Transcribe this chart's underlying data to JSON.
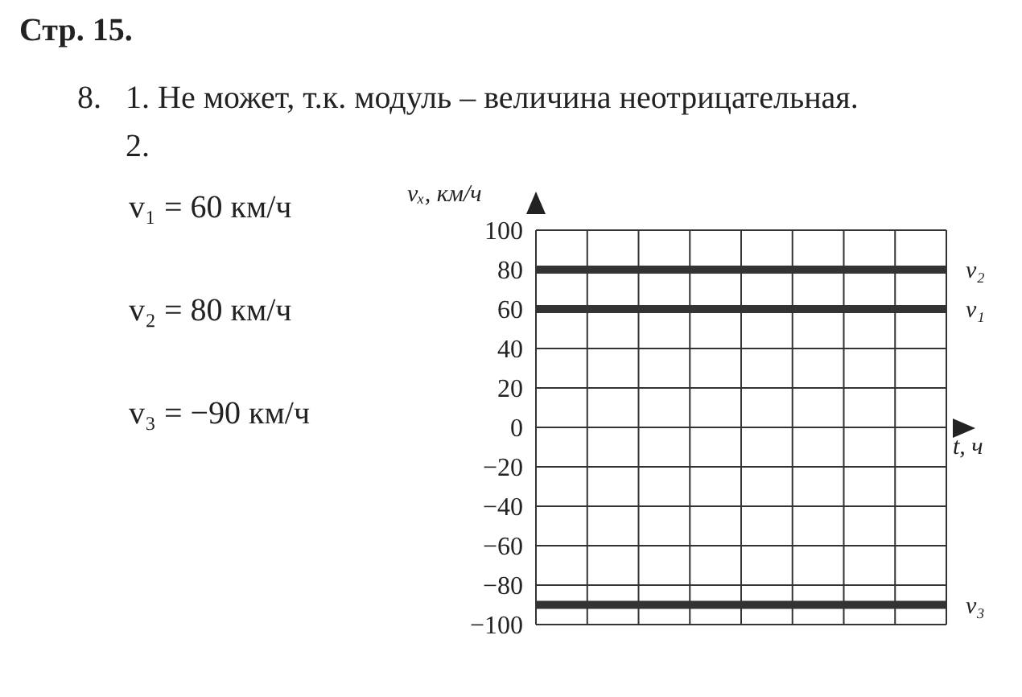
{
  "chart_data": {
    "type": "line",
    "title": "Стр. 15.",
    "subtitle": "8.   1. Не может, т.к. модуль – величина неотрицательная.",
    "annotations": [
      "2.",
      "v₁ = 60 км/ч",
      "v₂ = 80 км/ч",
      "v₃ = −90 км/ч"
    ],
    "xlabel": "t, ч",
    "ylabel": "vₓ, км/ч",
    "categories": [
      null,
      null,
      null,
      null,
      null,
      null,
      null,
      null,
      null
    ],
    "series": [
      {
        "name": "v₂",
        "color": "#333333",
        "values": [
          80,
          80,
          80,
          80,
          80,
          80,
          80,
          80,
          80
        ]
      },
      {
        "name": "v₁",
        "color": "#333333",
        "values": [
          60,
          60,
          60,
          60,
          60,
          60,
          60,
          60,
          60
        ]
      },
      {
        "name": "v₃",
        "color": "#333333",
        "values": [
          -90,
          -90,
          -90,
          -90,
          -90,
          -90,
          -90,
          -90,
          -90
        ]
      }
    ],
    "ylim": [
      -100,
      100
    ],
    "yticks": [
      {
        "value": -100,
        "label": "−100"
      },
      {
        "value": -80,
        "label": "−80"
      },
      {
        "value": -60,
        "label": "−60"
      },
      {
        "value": -40,
        "label": "−40"
      },
      {
        "value": -20,
        "label": "−20"
      },
      0,
      20,
      40,
      60,
      80,
      100
    ],
    "grid": true,
    "tick_labels": "y",
    "marker": "none",
    "line_style": "solid"
  }
}
